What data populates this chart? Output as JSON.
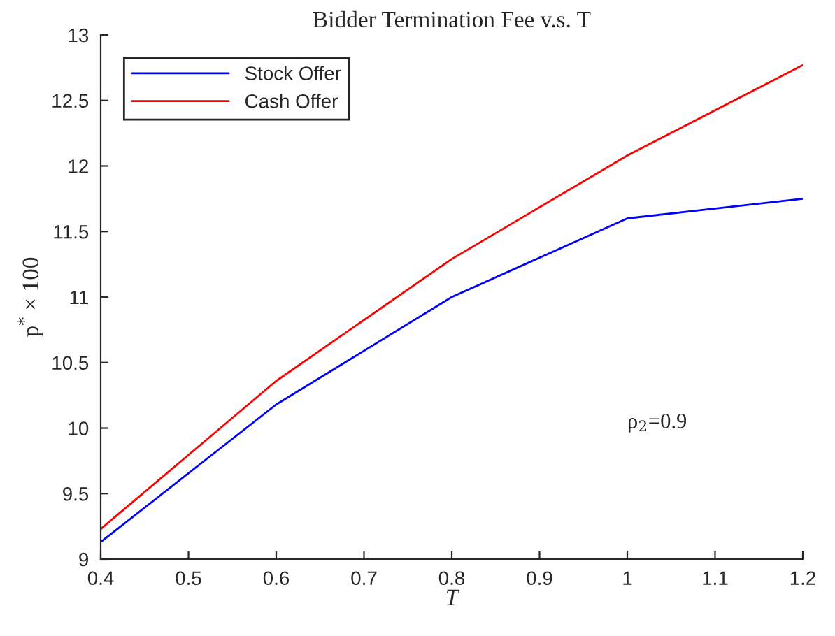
{
  "chart_data": {
    "type": "line",
    "title": "Bidder Termination Fee v.s. T",
    "xlabel": "T",
    "ylabel": "p$^{*}$ × 100",
    "x": [
      0.4,
      0.6,
      0.8,
      1.0,
      1.2
    ],
    "series": [
      {
        "name": "Stock Offer",
        "color": "#0000ff",
        "values": [
          9.13,
          10.18,
          11.0,
          11.6,
          11.75
        ]
      },
      {
        "name": "Cash Offer",
        "color": "#ff0000",
        "values": [
          9.23,
          10.36,
          11.29,
          12.08,
          12.77
        ]
      }
    ],
    "annotations": [
      "ρ$_{2}$=0.9"
    ],
    "xlim": [
      0.4,
      1.2
    ],
    "xticks": [
      0.4,
      0.5,
      0.6,
      0.7,
      0.8,
      0.9,
      1,
      1.1,
      1.2
    ],
    "ylim": [
      9,
      13
    ],
    "yticks": [
      9,
      9.5,
      10,
      10.5,
      11,
      11.5,
      12,
      12.5,
      13
    ],
    "grid": false,
    "legend": "top left",
    "marker": "none",
    "line_style": "solid"
  }
}
